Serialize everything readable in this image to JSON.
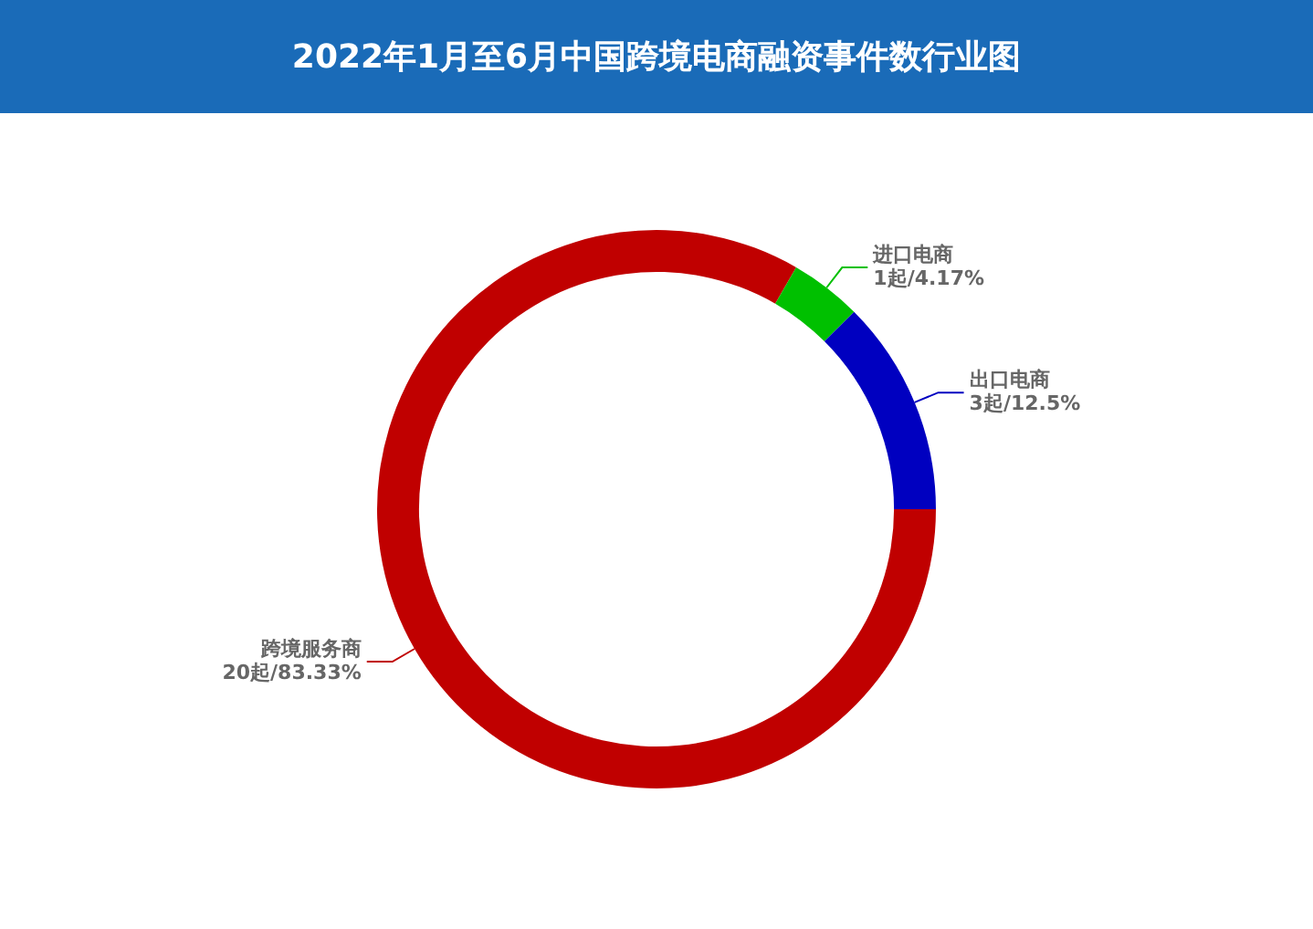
{
  "chart_data": {
    "type": "donut",
    "title": "2022年1月至6月中国跨境电商融资事件数行业图",
    "categories": [
      "跨境服务商",
      "进口电商",
      "出口电商"
    ],
    "values": [
      20,
      1,
      3
    ],
    "colors": [
      "#c00000",
      "#00c000",
      "#0000c0"
    ],
    "value_labels": [
      "20起/83.33%",
      "1起/4.17%",
      "3起/12.5%"
    ],
    "legend": false
  }
}
